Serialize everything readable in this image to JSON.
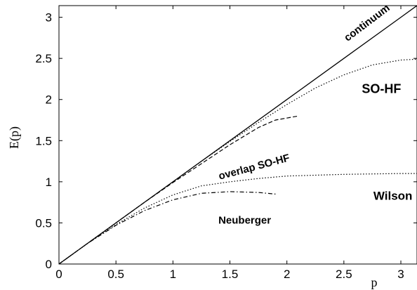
{
  "chart_data": {
    "type": "line",
    "xlabel": "p",
    "ylabel": "E(p)",
    "xlim": [
      0,
      3.14159
    ],
    "ylim": [
      0,
      3.14159
    ],
    "x_ticks": [
      0,
      0.5,
      1,
      1.5,
      2,
      2.5,
      3
    ],
    "y_ticks": [
      0,
      0.5,
      1,
      1.5,
      2,
      2.5,
      3
    ],
    "x_tick_labels": [
      "0",
      "0.5",
      "1",
      "1.5",
      "2",
      "2.5",
      "3"
    ],
    "y_tick_labels": [
      "0",
      "0.5",
      "1",
      "1.5",
      "2",
      "2.5",
      "3"
    ],
    "grid": false,
    "series": [
      {
        "name": "continuum",
        "style": "solid",
        "x": [
          0,
          0.5,
          1,
          1.5,
          2,
          2.5,
          3,
          3.14
        ],
        "y": [
          0,
          0.5,
          1,
          1.5,
          2,
          2.5,
          3,
          3.14
        ]
      },
      {
        "name": "SO-HF",
        "style": "dotted",
        "x": [
          0,
          0.25,
          0.5,
          0.75,
          1,
          1.25,
          1.5,
          1.75,
          2,
          2.25,
          2.5,
          2.75,
          3,
          3.14
        ],
        "y": [
          0,
          0.25,
          0.5,
          0.75,
          1,
          1.25,
          1.49,
          1.72,
          1.94,
          2.14,
          2.3,
          2.42,
          2.48,
          2.49
        ]
      },
      {
        "name": "overlap SO-HF",
        "style": "dashed",
        "x": [
          0,
          0.25,
          0.5,
          0.75,
          1,
          1.25,
          1.5,
          1.75,
          1.9,
          2.1
        ],
        "y": [
          0,
          0.25,
          0.5,
          0.75,
          0.99,
          1.22,
          1.45,
          1.66,
          1.75,
          1.8
        ]
      },
      {
        "name": "Wilson",
        "style": "dotted",
        "x": [
          0,
          0.25,
          0.5,
          0.75,
          1,
          1.25,
          1.5,
          1.75,
          2,
          2.25,
          2.5,
          2.75,
          3,
          3.14
        ],
        "y": [
          0,
          0.25,
          0.48,
          0.68,
          0.84,
          0.95,
          1.0,
          1.04,
          1.07,
          1.08,
          1.09,
          1.095,
          1.1,
          1.1
        ]
      },
      {
        "name": "Neuberger",
        "style": "dashdot",
        "x": [
          0,
          0.25,
          0.5,
          0.75,
          1,
          1.25,
          1.5,
          1.75,
          1.9
        ],
        "y": [
          0,
          0.25,
          0.47,
          0.65,
          0.78,
          0.86,
          0.88,
          0.87,
          0.85
        ]
      }
    ],
    "annotations": [
      {
        "text": "continuum",
        "x": 2.72,
        "y": 2.9,
        "angle": -37,
        "size": 15
      },
      {
        "text": "SO-HF",
        "x": 2.83,
        "y": 2.08,
        "angle": 0,
        "size": 18
      },
      {
        "text": "overlap SO-HF",
        "x": 1.72,
        "y": 1.14,
        "angle": -15,
        "size": 15
      },
      {
        "text": "Wilson",
        "x": 2.93,
        "y": 0.78,
        "angle": 0,
        "size": 17
      },
      {
        "text": "Neuberger",
        "x": 1.63,
        "y": 0.49,
        "angle": 0,
        "size": 15
      }
    ]
  }
}
